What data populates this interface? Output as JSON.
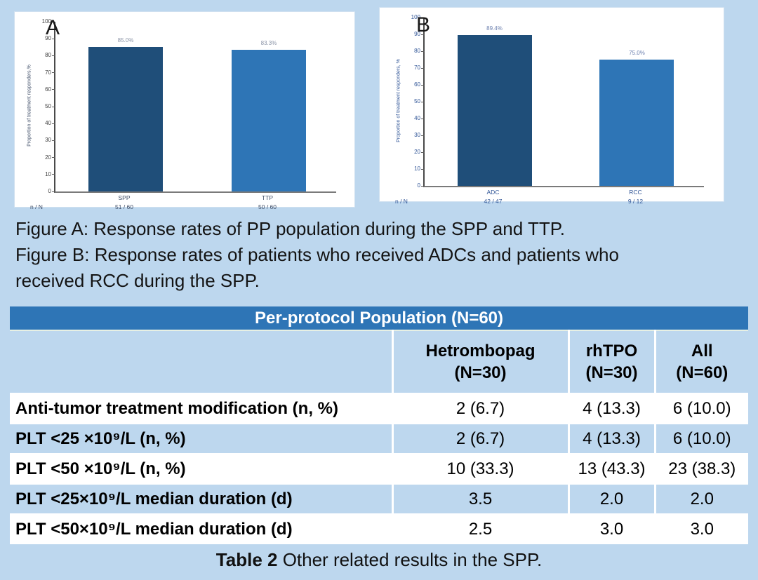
{
  "colors": {
    "page_bg": "#BDD7EE",
    "panel_bg": "#FFFFFF",
    "table_header_bg": "#2E75B6",
    "table_alt_row_bg": "#BDD7EE",
    "dark_bar": "#1F4E79",
    "light_bar": "#2E75B6"
  },
  "chart_data": [
    {
      "type": "bar",
      "panel_letter": "A",
      "title": "",
      "ylabel": "Proportion of treatment responders,%",
      "xlabel": "",
      "ylim": [
        0,
        100
      ],
      "ytick_step": 10,
      "grid": false,
      "legend_position": "none",
      "categories": [
        "SPP",
        "TTP"
      ],
      "values": [
        85.0,
        83.3
      ],
      "value_labels": [
        "85.0%",
        "83.3%"
      ],
      "n_over_N": [
        "51 / 60",
        "50 / 60"
      ],
      "nN_legend": "n / N",
      "bar_colors": [
        "#1F4E79",
        "#2E75B6"
      ],
      "tick_color": "#404040",
      "axis_text_color": "#3d4c66",
      "label_color": "#8a93a6"
    },
    {
      "type": "bar",
      "panel_letter": "B",
      "title": "",
      "ylabel": "Proportion of treatment responders, %",
      "xlabel": "",
      "ylim": [
        0,
        100
      ],
      "ytick_step": 10,
      "grid": false,
      "legend_position": "none",
      "categories": [
        "ADC",
        "RCC"
      ],
      "values": [
        89.4,
        75.0
      ],
      "value_labels": [
        "89.4%",
        "75.0%"
      ],
      "n_over_N": [
        "42 / 47",
        "9 / 12"
      ],
      "nN_legend": "n / N",
      "bar_colors": [
        "#1F4E79",
        "#2E75B6"
      ],
      "tick_color": "#2f5496",
      "axis_text_color": "#2f5496",
      "label_color": "#6b7fae"
    }
  ],
  "captions": {
    "figure_a": "Figure A: Response rates of PP population during the SPP and TTP.",
    "figure_b": "Figure B: Response rates of patients who received ADCs and patients who received RCC during the SPP."
  },
  "table": {
    "title": "Per-protocol Population (N=60)",
    "columns": [
      "",
      "Hetrombopag\n(N=30)",
      "rhTPO\n(N=30)",
      "All\n(N=60)"
    ],
    "rows": [
      {
        "label": "Anti-tumor treatment modification (n, %)",
        "values": [
          "2 (6.7)",
          "4 (13.3)",
          "6 (10.0)"
        ]
      },
      {
        "label": "PLT <25 ×10⁹/L (n, %)",
        "values": [
          "2 (6.7)",
          "4 (13.3)",
          "6 (10.0)"
        ]
      },
      {
        "label": "PLT <50 ×10⁹/L (n, %)",
        "values": [
          "10 (33.3)",
          "13 (43.3)",
          "23 (38.3)"
        ]
      },
      {
        "label": "PLT <25×10⁹/L median duration (d)",
        "values": [
          "3.5",
          "2.0",
          "2.0"
        ]
      },
      {
        "label": "PLT <50×10⁹/L median duration (d)",
        "values": [
          "2.5",
          "3.0",
          "3.0"
        ]
      }
    ],
    "caption_bold": "Table 2",
    "caption_rest": " Other related results in the SPP."
  }
}
